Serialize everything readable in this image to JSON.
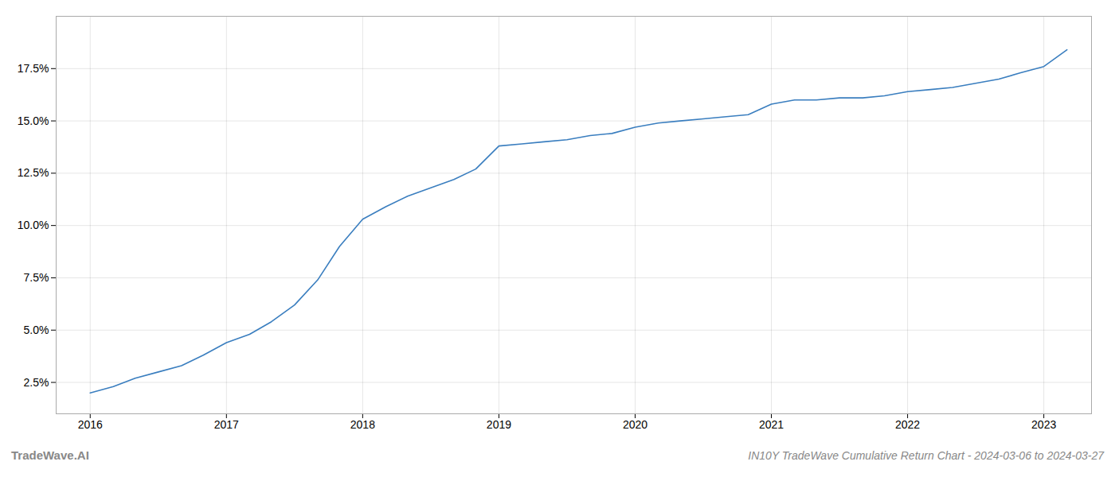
{
  "chart_data": {
    "type": "line",
    "title": "IN10Y TradeWave Cumulative Return Chart - 2024-03-06 to 2024-03-27",
    "annotations": [
      "TradeWave.AI"
    ],
    "x": [
      2016.0,
      2016.17,
      2016.33,
      2016.5,
      2016.67,
      2016.83,
      2017.0,
      2017.17,
      2017.33,
      2017.5,
      2017.67,
      2017.83,
      2018.0,
      2018.17,
      2018.33,
      2018.5,
      2018.67,
      2018.83,
      2019.0,
      2019.17,
      2019.33,
      2019.5,
      2019.67,
      2019.83,
      2020.0,
      2020.17,
      2020.33,
      2020.5,
      2020.67,
      2020.83,
      2021.0,
      2021.17,
      2021.33,
      2021.5,
      2021.67,
      2021.83,
      2022.0,
      2022.17,
      2022.33,
      2022.5,
      2022.67,
      2022.83,
      2023.0,
      2023.17
    ],
    "values": [
      0.02,
      0.023,
      0.027,
      0.03,
      0.033,
      0.038,
      0.044,
      0.048,
      0.054,
      0.062,
      0.074,
      0.09,
      0.103,
      0.109,
      0.114,
      0.118,
      0.122,
      0.127,
      0.138,
      0.139,
      0.14,
      0.141,
      0.143,
      0.144,
      0.147,
      0.149,
      0.15,
      0.151,
      0.152,
      0.153,
      0.158,
      0.16,
      0.16,
      0.161,
      0.161,
      0.162,
      0.164,
      0.165,
      0.166,
      0.168,
      0.17,
      0.173,
      0.176,
      0.184
    ],
    "color": "#3a7ebf",
    "xlim": [
      2015.75,
      2023.35
    ],
    "xticks": [
      2016,
      2017,
      2018,
      2019,
      2020,
      2021,
      2022,
      2023
    ],
    "ylim": [
      0.01,
      0.2
    ],
    "yticks": [
      {
        "value": 0.025,
        "label": "2.5%"
      },
      {
        "value": 0.05,
        "label": "5.0%"
      },
      {
        "value": 0.075,
        "label": "7.5%"
      },
      {
        "value": 0.1,
        "label": "10.0%"
      },
      {
        "value": 0.125,
        "label": "12.5%"
      },
      {
        "value": 0.15,
        "label": "15.0%"
      },
      {
        "value": 0.175,
        "label": "17.5%"
      }
    ],
    "grid": true
  }
}
